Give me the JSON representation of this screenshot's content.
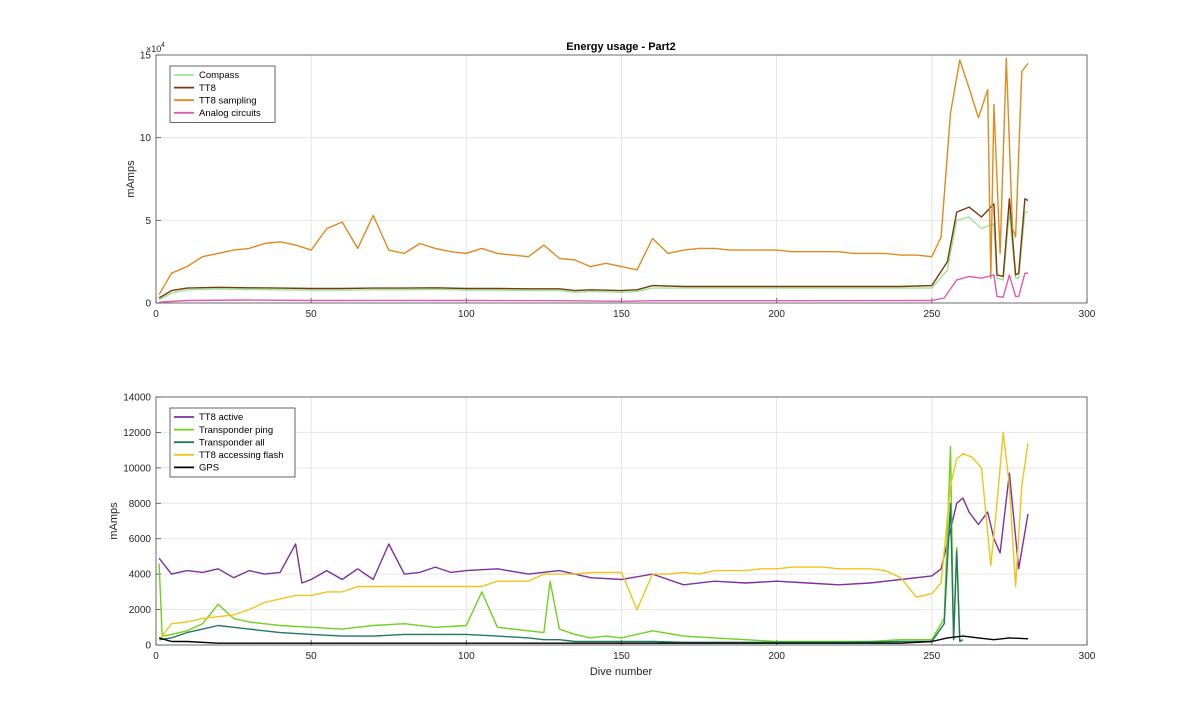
{
  "chart_data": [
    {
      "type": "line",
      "title": "Energy usage - Part2",
      "xlabel": "",
      "ylabel": "mAmps",
      "xlim": [
        0,
        300
      ],
      "ylim": [
        0,
        150000
      ],
      "xticks": [
        "0",
        "50",
        "100",
        "150",
        "200",
        "250",
        "300"
      ],
      "yticks": [
        "0",
        "5",
        "10",
        "15"
      ],
      "y_exponent_label": "×10",
      "y_exponent_power": "4",
      "grid": true,
      "legend_position": "top-left",
      "series": [
        {
          "name": "Compass",
          "color": "#99e699",
          "x": [
            1,
            5,
            10,
            20,
            30,
            40,
            50,
            60,
            70,
            80,
            90,
            100,
            110,
            120,
            130,
            135,
            140,
            150,
            155,
            160,
            170,
            180,
            190,
            200,
            210,
            220,
            230,
            240,
            250,
            255,
            258,
            262,
            266,
            270,
            271,
            273,
            275,
            277,
            278,
            280,
            281
          ],
          "y": [
            2000,
            6000,
            8000,
            8500,
            8200,
            8000,
            7800,
            7800,
            8000,
            8000,
            8200,
            7800,
            7800,
            7600,
            7600,
            6500,
            7000,
            6500,
            7000,
            9000,
            9000,
            9000,
            9000,
            9000,
            9000,
            9000,
            9000,
            9000,
            9000,
            20000,
            50000,
            52000,
            45000,
            48000,
            15000,
            14000,
            55000,
            15000,
            15000,
            55000,
            55000
          ]
        },
        {
          "name": "TT8",
          "color": "#7a3a0c",
          "x": [
            1,
            5,
            10,
            20,
            30,
            40,
            50,
            60,
            70,
            80,
            90,
            100,
            110,
            120,
            130,
            135,
            140,
            150,
            155,
            160,
            170,
            180,
            190,
            200,
            210,
            220,
            230,
            240,
            250,
            255,
            258,
            262,
            266,
            270,
            271,
            273,
            275,
            277,
            278,
            280,
            281
          ],
          "y": [
            3000,
            7500,
            9000,
            9500,
            9200,
            9000,
            8800,
            8800,
            9000,
            9000,
            9200,
            8800,
            8800,
            8600,
            8600,
            7500,
            8000,
            7500,
            8000,
            10500,
            10000,
            10000,
            10000,
            10000,
            10000,
            10000,
            10000,
            10000,
            10500,
            25000,
            55000,
            58000,
            52000,
            60000,
            17000,
            16000,
            63000,
            17000,
            18000,
            63000,
            62000
          ]
        },
        {
          "name": "TT8 sampling",
          "color": "#e08a1e",
          "x": [
            1,
            5,
            10,
            15,
            20,
            25,
            30,
            35,
            40,
            45,
            50,
            55,
            60,
            65,
            70,
            75,
            80,
            85,
            90,
            95,
            100,
            105,
            110,
            115,
            120,
            125,
            130,
            135,
            140,
            145,
            150,
            155,
            160,
            165,
            170,
            175,
            180,
            185,
            190,
            195,
            200,
            205,
            210,
            215,
            220,
            225,
            230,
            235,
            240,
            245,
            250,
            253,
            256,
            259,
            262,
            265,
            268,
            269,
            270,
            272,
            274,
            276,
            277,
            279,
            281
          ],
          "y": [
            5000,
            18000,
            22000,
            28000,
            30000,
            32000,
            33000,
            36000,
            37000,
            35000,
            32000,
            45000,
            49000,
            33000,
            53000,
            32000,
            30000,
            36000,
            33000,
            31000,
            30000,
            33000,
            30000,
            29000,
            28000,
            35000,
            27000,
            26000,
            22000,
            24000,
            22000,
            20000,
            39000,
            30000,
            32000,
            33000,
            33000,
            32000,
            32000,
            32000,
            32000,
            31000,
            31000,
            31000,
            31000,
            30000,
            30000,
            30000,
            29000,
            29000,
            28000,
            40000,
            115000,
            147000,
            130000,
            112000,
            129000,
            15000,
            120000,
            30000,
            148000,
            45000,
            40000,
            140000,
            145000
          ]
        },
        {
          "name": "Analog circuits",
          "color": "#e05ab0",
          "x": [
            1,
            10,
            30,
            50,
            70,
            100,
            130,
            150,
            160,
            200,
            250,
            254,
            258,
            262,
            266,
            270,
            271,
            273,
            275,
            277,
            278,
            280,
            281
          ],
          "y": [
            500,
            1500,
            1800,
            1500,
            1600,
            1500,
            1400,
            1000,
            1400,
            1400,
            1500,
            3000,
            14000,
            16000,
            15000,
            17000,
            4000,
            3500,
            17000,
            4000,
            4000,
            18000,
            18000
          ]
        }
      ]
    },
    {
      "type": "line",
      "title": "",
      "xlabel": "Dive number",
      "ylabel": "mAmps",
      "xlim": [
        0,
        300
      ],
      "ylim": [
        0,
        14000
      ],
      "xticks": [
        "0",
        "50",
        "100",
        "150",
        "200",
        "250",
        "300"
      ],
      "yticks": [
        "0",
        "2000",
        "4000",
        "6000",
        "8000",
        "10000",
        "12000",
        "14000"
      ],
      "grid": true,
      "legend_position": "top-left",
      "series": [
        {
          "name": "TT8 active",
          "color": "#7e2fa0",
          "x": [
            1,
            5,
            10,
            15,
            20,
            25,
            30,
            35,
            40,
            45,
            47,
            50,
            55,
            60,
            65,
            70,
            75,
            80,
            85,
            90,
            95,
            100,
            110,
            120,
            130,
            140,
            150,
            160,
            170,
            180,
            190,
            200,
            210,
            220,
            230,
            240,
            250,
            253,
            256,
            258,
            260,
            262,
            265,
            268,
            270,
            272,
            275,
            278,
            281
          ],
          "y": [
            4900,
            4000,
            4200,
            4100,
            4300,
            3800,
            4200,
            4000,
            4100,
            5700,
            3500,
            3700,
            4200,
            3700,
            4300,
            3700,
            5700,
            4000,
            4100,
            4400,
            4100,
            4200,
            4300,
            4000,
            4200,
            3800,
            3700,
            4000,
            3400,
            3600,
            3500,
            3600,
            3500,
            3400,
            3500,
            3700,
            3900,
            4300,
            6500,
            8000,
            8300,
            7500,
            6800,
            7500,
            6000,
            5200,
            9700,
            4300,
            7400
          ]
        },
        {
          "name": "Transponder ping",
          "color": "#6ed21e",
          "x": [
            1,
            2,
            5,
            10,
            15,
            20,
            25,
            30,
            40,
            50,
            60,
            70,
            80,
            90,
            100,
            105,
            110,
            120,
            125,
            127,
            130,
            135,
            140,
            145,
            150,
            160,
            170,
            180,
            190,
            200,
            210,
            220,
            230,
            240,
            250,
            254,
            256,
            257,
            258,
            259,
            260
          ],
          "y": [
            4600,
            500,
            600,
            800,
            1200,
            2300,
            1500,
            1300,
            1100,
            1000,
            900,
            1100,
            1200,
            1000,
            1100,
            3000,
            1000,
            800,
            700,
            3600,
            900,
            600,
            400,
            500,
            400,
            800,
            500,
            400,
            300,
            200,
            200,
            200,
            200,
            300,
            300,
            1500,
            11200,
            300,
            5500,
            200,
            300
          ]
        },
        {
          "name": "Transponder all",
          "color": "#1f7a5c",
          "x": [
            1,
            5,
            10,
            15,
            20,
            25,
            30,
            40,
            50,
            60,
            70,
            80,
            90,
            100,
            110,
            120,
            125,
            130,
            135,
            140,
            150,
            160,
            170,
            180,
            190,
            200,
            220,
            240,
            250,
            254,
            256,
            257,
            258,
            259,
            260
          ],
          "y": [
            300,
            400,
            700,
            900,
            1100,
            1000,
            900,
            700,
            600,
            500,
            500,
            600,
            600,
            600,
            500,
            400,
            300,
            300,
            200,
            200,
            200,
            200,
            150,
            150,
            150,
            150,
            150,
            200,
            200,
            1200,
            8000,
            300,
            5300,
            200,
            300
          ]
        },
        {
          "name": "TT8 accessing flash",
          "color": "#f0c419",
          "x": [
            1,
            5,
            10,
            15,
            20,
            25,
            30,
            35,
            40,
            45,
            50,
            55,
            60,
            65,
            70,
            75,
            80,
            85,
            90,
            95,
            100,
            105,
            110,
            115,
            120,
            125,
            130,
            135,
            140,
            145,
            150,
            155,
            160,
            165,
            170,
            175,
            180,
            185,
            190,
            195,
            200,
            205,
            210,
            215,
            220,
            225,
            230,
            235,
            240,
            245,
            250,
            253,
            256,
            258,
            260,
            263,
            266,
            269,
            271,
            273,
            275,
            277,
            279,
            281
          ],
          "y": [
            300,
            1200,
            1300,
            1500,
            1600,
            1700,
            2000,
            2400,
            2600,
            2800,
            2800,
            3000,
            3000,
            3300,
            3300,
            3300,
            3300,
            3300,
            3300,
            3300,
            3300,
            3300,
            3600,
            3600,
            3600,
            4000,
            4000,
            4000,
            4100,
            4100,
            4100,
            2000,
            4000,
            4000,
            4100,
            4000,
            4200,
            4200,
            4200,
            4300,
            4300,
            4400,
            4400,
            4400,
            4300,
            4300,
            4300,
            4200,
            3800,
            2700,
            2900,
            3500,
            9000,
            10500,
            10800,
            10600,
            10000,
            4500,
            8000,
            12000,
            9000,
            3300,
            9000,
            11400
          ]
        },
        {
          "name": "GPS",
          "color": "#000000",
          "x": [
            1,
            5,
            10,
            20,
            30,
            40,
            45,
            50,
            60,
            70,
            80,
            90,
            100,
            120,
            150,
            200,
            240,
            250,
            255,
            260,
            265,
            270,
            275,
            281
          ],
          "y": [
            400,
            200,
            200,
            100,
            100,
            100,
            100,
            100,
            100,
            100,
            100,
            100,
            100,
            100,
            100,
            100,
            100,
            200,
            400,
            500,
            400,
            300,
            400,
            350
          ]
        }
      ]
    }
  ]
}
